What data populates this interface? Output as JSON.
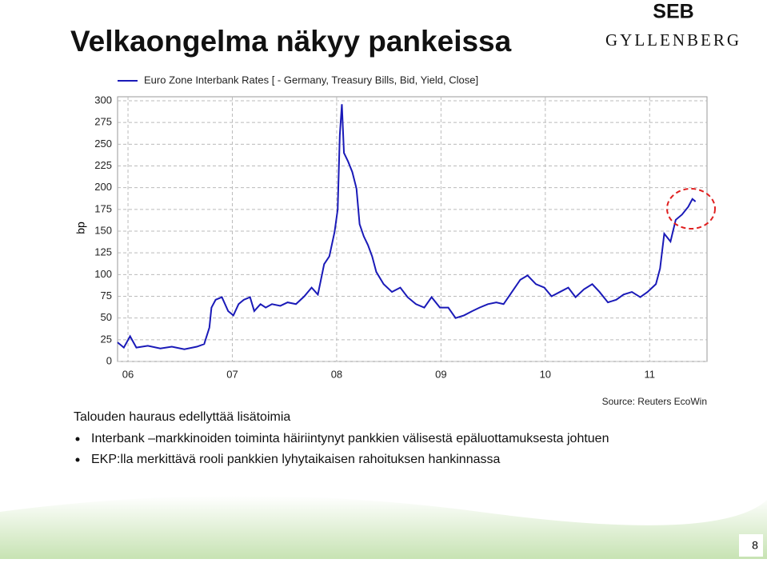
{
  "slide": {
    "title": "Velkaongelma näkyy pankeissa",
    "logo_top": "SEB",
    "logo_bottom": "GYLLENBERG",
    "heading": "Talouden hauraus edellyttää lisätoimia",
    "bullets": [
      "Interbank –markkinoiden toiminta häiriintynyt pankkien välisestä epäluottamuksesta johtuen",
      "EKP:lla merkittävä rooli pankkien lyhytaikaisen rahoituksen hankinnassa"
    ],
    "page_number": "8"
  },
  "chart_data": {
    "type": "line",
    "ylabel": "bp",
    "source": "Source: Reuters EcoWin",
    "grid": true,
    "x": [
      2005.9,
      2005.96,
      2006.02,
      2006.08,
      2006.19,
      2006.31,
      2006.42,
      2006.54,
      2006.66,
      2006.73,
      2006.78,
      2006.8,
      2006.84,
      2006.9,
      2006.96,
      2007.01,
      2007.06,
      2007.11,
      2007.17,
      2007.21,
      2007.27,
      2007.32,
      2007.38,
      2007.46,
      2007.53,
      2007.61,
      2007.69,
      2007.76,
      2007.82,
      2007.88,
      2007.93,
      2007.98,
      2008.01,
      2008.03,
      2008.05,
      2008.07,
      2008.11,
      2008.15,
      2008.19,
      2008.22,
      2008.26,
      2008.3,
      2008.34,
      2008.38,
      2008.45,
      2008.53,
      2008.61,
      2008.68,
      2008.76,
      2008.84,
      2008.91,
      2008.99,
      2009.07,
      2009.14,
      2009.22,
      2009.3,
      2009.37,
      2009.45,
      2009.53,
      2009.6,
      2009.68,
      2009.76,
      2009.83,
      2009.91,
      2009.99,
      2010.06,
      2010.14,
      2010.22,
      2010.29,
      2010.37,
      2010.45,
      2010.52,
      2010.6,
      2010.68,
      2010.75,
      2010.83,
      2010.91,
      2010.98,
      2011.06,
      2011.1,
      2011.14,
      2011.2,
      2011.25,
      2011.31,
      2011.37,
      2011.41,
      2011.44
    ],
    "series": [
      {
        "name": "Euro Zone Interbank Rates [ - Germany, Treasury Bills, Bid, Yield, Close]",
        "color": "#1a1ab8",
        "values": [
          22,
          16,
          29,
          16,
          18,
          15,
          17,
          14,
          17,
          20,
          39,
          62,
          71,
          74,
          58,
          53,
          66,
          71,
          74,
          58,
          66,
          62,
          66,
          64,
          68,
          66,
          75,
          85,
          77,
          112,
          121,
          149,
          175,
          260,
          296,
          240,
          230,
          218,
          199,
          158,
          144,
          134,
          121,
          103,
          89,
          80,
          85,
          74,
          66,
          62,
          74,
          62,
          62,
          50,
          53,
          58,
          62,
          66,
          68,
          66,
          80,
          94,
          99,
          89,
          85,
          75,
          80,
          85,
          74,
          83,
          89,
          80,
          68,
          71,
          77,
          80,
          74,
          80,
          89,
          107,
          147,
          138,
          163,
          169,
          178,
          187,
          184
        ]
      }
    ],
    "xlim": [
      2005.9,
      2011.55
    ],
    "xticks": [
      {
        "value": 2006,
        "label": "06"
      },
      {
        "value": 2007,
        "label": "07"
      },
      {
        "value": 2008,
        "label": "08"
      },
      {
        "value": 2009,
        "label": "09"
      },
      {
        "value": 2010,
        "label": "10"
      },
      {
        "value": 2011,
        "label": "11"
      }
    ],
    "ylim": [
      0,
      300
    ],
    "yticks": [
      0,
      25,
      50,
      75,
      100,
      125,
      150,
      175,
      200,
      225,
      250,
      275,
      300
    ]
  }
}
